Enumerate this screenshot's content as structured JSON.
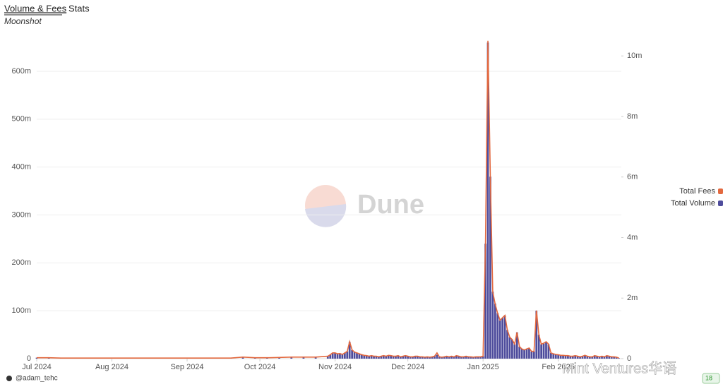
{
  "chart_data": {
    "type": "bar-line",
    "tabs": [
      "Volume & Fees",
      "Stats"
    ],
    "subtitle": "Moonshot",
    "watermark": "Dune",
    "overlay_watermark": "Mint Ventures华语",
    "author": "@adam_tehc",
    "badge": "18",
    "xlim": [
      0,
      241
    ],
    "xticks": [
      {
        "value": 0,
        "label": "Jul 2024"
      },
      {
        "value": 31,
        "label": "Aug 2024"
      },
      {
        "value": 62,
        "label": "Sep 2024"
      },
      {
        "value": 92,
        "label": "Oct 2024"
      },
      {
        "value": 123,
        "label": "Nov 2024"
      },
      {
        "value": 153,
        "label": "Dec 2024"
      },
      {
        "value": 184,
        "label": "Jan 2025"
      },
      {
        "value": 215,
        "label": "Feb 2025"
      }
    ],
    "ylim": [
      0,
      670
    ],
    "yticks": [
      0,
      {
        "value": 100,
        "label": "100m"
      },
      {
        "value": 200,
        "label": "200m"
      },
      {
        "value": 300,
        "label": "300m"
      },
      {
        "value": 400,
        "label": "400m"
      },
      {
        "value": 500,
        "label": "500m"
      },
      {
        "value": 600,
        "label": "600m"
      }
    ],
    "y2lim": [
      0,
      10.6
    ],
    "y2ticks": [
      0,
      {
        "value": 2,
        "label": "2m"
      },
      {
        "value": 4,
        "label": "4m"
      },
      {
        "value": 6,
        "label": "6m"
      },
      {
        "value": 8,
        "label": "8m"
      },
      {
        "value": 10,
        "label": "10m"
      }
    ],
    "grid": true,
    "legend": "right",
    "x": [
      0,
      5,
      10,
      15,
      20,
      25,
      30,
      35,
      40,
      45,
      50,
      55,
      60,
      65,
      70,
      75,
      80,
      85,
      90,
      95,
      100,
      105,
      110,
      115,
      120,
      121,
      122,
      123,
      124,
      125,
      126,
      127,
      128,
      129,
      130,
      131,
      132,
      133,
      134,
      135,
      136,
      137,
      138,
      139,
      140,
      141,
      142,
      143,
      144,
      145,
      146,
      147,
      148,
      149,
      150,
      151,
      152,
      153,
      154,
      155,
      156,
      157,
      158,
      159,
      160,
      161,
      162,
      163,
      164,
      165,
      166,
      167,
      168,
      169,
      170,
      171,
      172,
      173,
      174,
      175,
      176,
      177,
      178,
      179,
      180,
      181,
      182,
      183,
      184,
      185,
      186,
      187,
      188,
      189,
      190,
      191,
      192,
      193,
      194,
      195,
      196,
      197,
      198,
      199,
      200,
      201,
      202,
      203,
      204,
      205,
      206,
      207,
      208,
      209,
      210,
      211,
      212,
      213,
      214,
      215,
      216,
      217,
      218,
      219,
      220,
      221,
      222,
      223,
      224,
      225,
      226,
      227,
      228,
      229,
      230,
      231,
      232,
      233,
      234,
      235,
      236,
      237,
      238,
      239,
      240
    ],
    "series": [
      {
        "name": "Total Fees",
        "color": "#e3693f",
        "kind": "line",
        "axis": "y2",
        "values": [
          0.03,
          0.03,
          0.02,
          0.02,
          0.02,
          0.02,
          0.02,
          0.02,
          0.02,
          0.02,
          0.02,
          0.02,
          0.02,
          0.02,
          0.02,
          0.02,
          0.02,
          0.05,
          0.03,
          0.03,
          0.04,
          0.05,
          0.05,
          0.05,
          0.08,
          0.13,
          0.19,
          0.19,
          0.16,
          0.17,
          0.14,
          0.19,
          0.24,
          0.56,
          0.29,
          0.22,
          0.19,
          0.16,
          0.13,
          0.11,
          0.1,
          0.08,
          0.1,
          0.08,
          0.08,
          0.06,
          0.08,
          0.1,
          0.08,
          0.11,
          0.1,
          0.08,
          0.08,
          0.1,
          0.06,
          0.08,
          0.1,
          0.08,
          0.06,
          0.06,
          0.08,
          0.08,
          0.06,
          0.06,
          0.05,
          0.06,
          0.05,
          0.06,
          0.08,
          0.19,
          0.06,
          0.05,
          0.06,
          0.08,
          0.06,
          0.08,
          0.06,
          0.1,
          0.08,
          0.06,
          0.06,
          0.08,
          0.06,
          0.06,
          0.05,
          0.06,
          0.06,
          0.06,
          0.08,
          3.8,
          10.5,
          6,
          2.2,
          1.8,
          1.5,
          1.27,
          1.35,
          1.43,
          0.95,
          0.71,
          0.63,
          0.48,
          0.87,
          0.4,
          0.32,
          0.29,
          0.32,
          0.35,
          0.24,
          0.24,
          1.59,
          0.79,
          0.48,
          0.51,
          0.56,
          0.48,
          0.19,
          0.16,
          0.14,
          0.13,
          0.11,
          0.11,
          0.1,
          0.1,
          0.08,
          0.08,
          0.1,
          0.08,
          0.06,
          0.08,
          0.11,
          0.08,
          0.06,
          0.06,
          0.1,
          0.08,
          0.06,
          0.08,
          0.06,
          0.1,
          0.08,
          0.06,
          0.06,
          0.05,
          0.02
        ]
      },
      {
        "name": "Total Volume",
        "color": "#4e4c9c",
        "kind": "bar",
        "axis": "y",
        "values": [
          2,
          2,
          1.5,
          1.5,
          1.5,
          1,
          1,
          1,
          1,
          1,
          1.5,
          1.5,
          1.5,
          1.5,
          1.5,
          1.5,
          1.5,
          3,
          2,
          2,
          2.5,
          3,
          3,
          3,
          5,
          8,
          12,
          12,
          10,
          11,
          9,
          12,
          15,
          35,
          18,
          14,
          12,
          10,
          8,
          7,
          6,
          5,
          6,
          5,
          5,
          4,
          5,
          6,
          5,
          7,
          6,
          5,
          5,
          6,
          4,
          5,
          6,
          5,
          4,
          4,
          5,
          5,
          4,
          4,
          3,
          4,
          3,
          4,
          5,
          8,
          4,
          3,
          4,
          5,
          4,
          5,
          4,
          6,
          5,
          4,
          4,
          5,
          4,
          4,
          3,
          4,
          4,
          4,
          5,
          240,
          660,
          380,
          140,
          115,
          95,
          80,
          85,
          90,
          60,
          45,
          40,
          30,
          55,
          25,
          20,
          18,
          20,
          22,
          15,
          15,
          100,
          50,
          30,
          32,
          35,
          30,
          12,
          10,
          9,
          8,
          7,
          7,
          6,
          6,
          5,
          5,
          6,
          5,
          4,
          5,
          7,
          5,
          4,
          4,
          6,
          5,
          4,
          5,
          4,
          6,
          5,
          4,
          4,
          3,
          1
        ]
      }
    ]
  }
}
